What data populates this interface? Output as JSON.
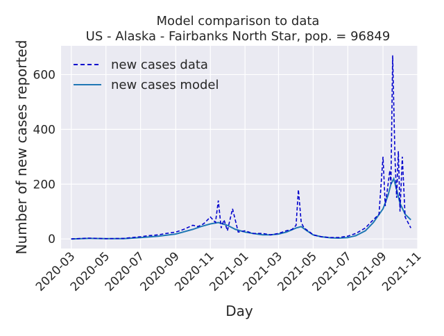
{
  "chart_data": {
    "type": "line",
    "title": "Model comparison to data",
    "subtitle": "US - Alaska - Fairbanks North Star, pop. = 96849",
    "xlabel": "Day",
    "ylabel": "Number of new cases reported",
    "xlim": [
      "2020-02-12",
      "2021-11-01"
    ],
    "ylim": [
      -35,
      705
    ],
    "grid": true,
    "legend_position": "top-left",
    "x_tick_labels": [
      "2020-03",
      "2020-05",
      "2020-07",
      "2020-09",
      "2020-11",
      "2021-01",
      "2021-03",
      "2021-05",
      "2021-07",
      "2021-09",
      "2021-11"
    ],
    "x_tick_dates": [
      "2020-03-01",
      "2020-05-01",
      "2020-07-01",
      "2020-09-01",
      "2020-11-01",
      "2021-01-01",
      "2021-03-01",
      "2021-05-01",
      "2021-07-01",
      "2021-09-01",
      "2021-11-01"
    ],
    "y_ticks": [
      0,
      200,
      400,
      600
    ],
    "series": [
      {
        "name": "new cases data",
        "style": "dashed",
        "color": "#0000cc",
        "x": [
          "2020-03-01",
          "2020-04-01",
          "2020-05-01",
          "2020-06-01",
          "2020-07-01",
          "2020-07-15",
          "2020-08-01",
          "2020-08-15",
          "2020-09-01",
          "2020-09-15",
          "2020-10-01",
          "2020-10-10",
          "2020-10-20",
          "2020-11-01",
          "2020-11-10",
          "2020-11-15",
          "2020-11-20",
          "2020-11-25",
          "2020-12-01",
          "2020-12-10",
          "2020-12-20",
          "2021-01-01",
          "2021-01-15",
          "2021-02-01",
          "2021-02-15",
          "2021-03-01",
          "2021-03-15",
          "2021-03-25",
          "2021-04-01",
          "2021-04-05",
          "2021-04-10",
          "2021-04-15",
          "2021-04-25",
          "2021-05-01",
          "2021-05-15",
          "2021-06-01",
          "2021-06-15",
          "2021-07-01",
          "2021-07-15",
          "2021-08-01",
          "2021-08-10",
          "2021-08-20",
          "2021-08-25",
          "2021-09-01",
          "2021-09-05",
          "2021-09-10",
          "2021-09-13",
          "2021-09-15",
          "2021-09-18",
          "2021-09-22",
          "2021-09-25",
          "2021-09-28",
          "2021-10-01",
          "2021-10-05",
          "2021-10-10",
          "2021-10-15",
          "2021-10-20"
        ],
        "y": [
          0,
          3,
          1,
          2,
          8,
          12,
          15,
          20,
          25,
          35,
          50,
          45,
          55,
          80,
          60,
          140,
          40,
          70,
          30,
          110,
          25,
          30,
          20,
          20,
          15,
          20,
          30,
          35,
          50,
          180,
          60,
          40,
          25,
          15,
          8,
          5,
          5,
          10,
          20,
          40,
          60,
          80,
          90,
          300,
          120,
          200,
          250,
          200,
          670,
          300,
          150,
          320,
          100,
          300,
          80,
          60,
          40
        ]
      },
      {
        "name": "new cases model",
        "style": "solid",
        "color": "#1f77b4",
        "x": [
          "2020-03-01",
          "2020-04-01",
          "2020-05-01",
          "2020-06-01",
          "2020-07-01",
          "2020-08-01",
          "2020-09-01",
          "2020-10-01",
          "2020-10-15",
          "2020-11-01",
          "2020-11-15",
          "2020-12-01",
          "2020-12-15",
          "2021-01-01",
          "2021-01-15",
          "2021-02-01",
          "2021-02-15",
          "2021-03-01",
          "2021-03-15",
          "2021-04-01",
          "2021-04-10",
          "2021-04-20",
          "2021-05-01",
          "2021-05-15",
          "2021-06-01",
          "2021-06-15",
          "2021-07-01",
          "2021-07-15",
          "2021-08-01",
          "2021-08-15",
          "2021-09-01",
          "2021-09-10",
          "2021-09-15",
          "2021-09-20",
          "2021-09-25",
          "2021-10-01",
          "2021-10-10",
          "2021-10-20"
        ],
        "y": [
          0,
          2,
          1,
          1,
          5,
          10,
          18,
          35,
          45,
          55,
          60,
          50,
          35,
          25,
          20,
          15,
          15,
          18,
          25,
          40,
          45,
          30,
          15,
          8,
          4,
          3,
          5,
          12,
          30,
          60,
          110,
          160,
          200,
          220,
          180,
          130,
          90,
          70
        ]
      }
    ]
  }
}
